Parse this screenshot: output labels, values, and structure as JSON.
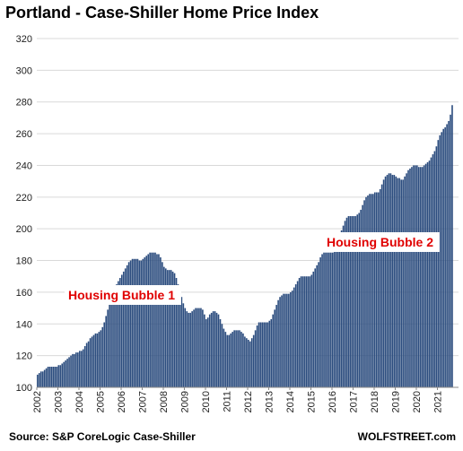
{
  "chart_data": {
    "type": "bar",
    "title": "Portland - Case-Shiller Home Price Index",
    "xlabel": "",
    "ylabel": "",
    "ylim": [
      100,
      320
    ],
    "yticks": [
      100,
      120,
      140,
      160,
      180,
      200,
      220,
      240,
      260,
      280,
      300,
      320
    ],
    "xticks": [
      "2002",
      "2003",
      "2004",
      "2005",
      "2006",
      "2007",
      "2008",
      "2009",
      "2010",
      "2011",
      "2012",
      "2013",
      "2014",
      "2015",
      "2016",
      "2017",
      "2018",
      "2019",
      "2020",
      "2021"
    ],
    "x_start": "2002-01",
    "frequency": "monthly",
    "bar_color": "#2b4c7e",
    "grid": true,
    "annotations": [
      {
        "text": "Housing Bubble 1",
        "color": "#e00000"
      },
      {
        "text": "Housing Bubble 2",
        "color": "#e00000"
      }
    ],
    "values": [
      108,
      109,
      110,
      110,
      111,
      112,
      113,
      113,
      113,
      113,
      113,
      113,
      114,
      114,
      115,
      116,
      117,
      118,
      119,
      120,
      121,
      121,
      122,
      122,
      123,
      123,
      124,
      126,
      128,
      129,
      131,
      132,
      133,
      134,
      134,
      135,
      136,
      138,
      141,
      145,
      149,
      153,
      157,
      160,
      163,
      165,
      167,
      169,
      171,
      173,
      175,
      177,
      179,
      180,
      181,
      181,
      181,
      181,
      180,
      180,
      181,
      182,
      183,
      184,
      185,
      185,
      185,
      185,
      184,
      184,
      182,
      179,
      176,
      175,
      174,
      174,
      174,
      173,
      172,
      169,
      165,
      161,
      157,
      153,
      150,
      148,
      147,
      147,
      148,
      149,
      150,
      150,
      150,
      150,
      149,
      146,
      143,
      144,
      146,
      147,
      148,
      148,
      147,
      146,
      143,
      140,
      137,
      135,
      133,
      133,
      134,
      135,
      136,
      136,
      136,
      136,
      135,
      134,
      132,
      131,
      130,
      129,
      131,
      133,
      136,
      139,
      141,
      141,
      141,
      141,
      141,
      141,
      142,
      143,
      146,
      149,
      152,
      155,
      157,
      158,
      159,
      159,
      159,
      159,
      160,
      161,
      163,
      165,
      167,
      169,
      170,
      170,
      170,
      170,
      170,
      170,
      171,
      173,
      175,
      177,
      179,
      182,
      184,
      185,
      185,
      185,
      185,
      185,
      185,
      187,
      190,
      193,
      196,
      199,
      202,
      205,
      207,
      208,
      208,
      208,
      208,
      208,
      209,
      210,
      212,
      215,
      218,
      220,
      221,
      222,
      222,
      222,
      223,
      223,
      223,
      225,
      228,
      231,
      233,
      234,
      235,
      235,
      234,
      234,
      233,
      232,
      232,
      231,
      231,
      233,
      235,
      237,
      238,
      239,
      240,
      240,
      240,
      239,
      239,
      239,
      240,
      241,
      242,
      243,
      245,
      247,
      249,
      252,
      256,
      259,
      261,
      263,
      264,
      266,
      268,
      272,
      278
    ]
  },
  "footer": {
    "source": "Source: S&P CoreLogic Case-Shiller",
    "brand": "WOLFSTREET.com"
  }
}
